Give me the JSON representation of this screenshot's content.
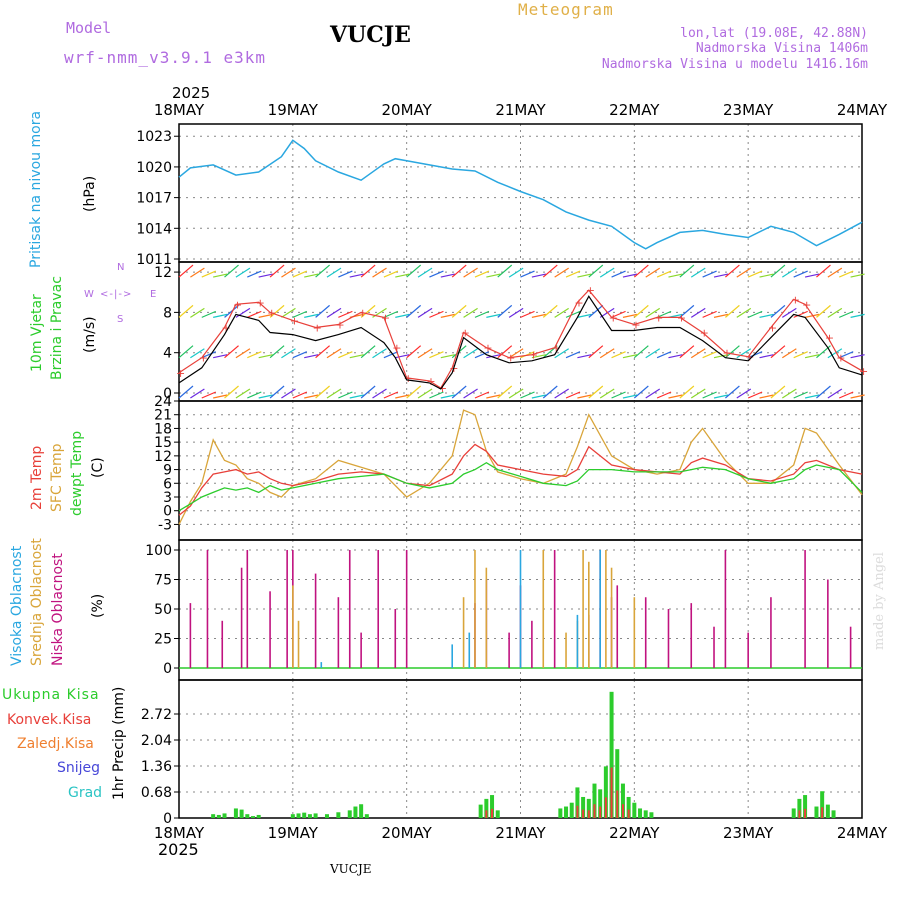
{
  "header": {
    "model_label": "Model",
    "model_name": "wrf-nmm_v3.9.1  e3km",
    "title": "VUCJE",
    "meteogram_label": "Meteogram",
    "coords": "lon,lat (19.08E, 42.88N)",
    "altitude": "Nadmorska Visina 1406m",
    "model_altitude": "Nadmorska Visina u modelu 1416.16m",
    "year_top": "2025",
    "year_bottom": "2025",
    "footer_station": "VUCJE",
    "credit": "made by Angel"
  },
  "colors": {
    "pressure": "#2aa7e0",
    "temp2m": "#e8403a",
    "sfc": "#d9a53a",
    "dewpt": "#2ccc2c",
    "high_cloud": "#2aa7e0",
    "mid_cloud": "#d9a53a",
    "low_cloud": "#c0127f",
    "total_precip": "#2ccc2c",
    "conv_precip": "#e8403a",
    "strat_precip": "#ef7f2f",
    "snow": "#4747d8",
    "hail": "#2ac4c4",
    "wind_label": "#2ccc2c",
    "compass": "#b06be0"
  },
  "chart_data": [
    {
      "type": "line",
      "panel": "pressure",
      "ylabel_1": "Pritisak na nivou mora",
      "ylabel_2": "(hPa)",
      "x_tick_labels": [
        "18MAY",
        "19MAY",
        "20MAY",
        "21MAY",
        "22MAY",
        "23MAY",
        "24MAY"
      ],
      "ylim": [
        1011,
        1024
      ],
      "y_ticks": [
        1011,
        1014,
        1017,
        1020,
        1023
      ],
      "x": [
        0,
        0.1,
        0.3,
        0.5,
        0.7,
        0.9,
        1.0,
        1.1,
        1.2,
        1.4,
        1.6,
        1.8,
        1.9,
        2.0,
        2.2,
        2.4,
        2.6,
        2.8,
        3.0,
        3.2,
        3.4,
        3.6,
        3.8,
        4.0,
        4.1,
        4.2,
        4.4,
        4.6,
        4.8,
        5.0,
        5.2,
        5.4,
        5.6,
        5.8,
        6.0
      ],
      "values": [
        1019.0,
        1019.9,
        1020.2,
        1019.2,
        1019.5,
        1021.0,
        1022.6,
        1021.8,
        1020.6,
        1019.5,
        1018.7,
        1020.3,
        1020.8,
        1020.6,
        1020.2,
        1019.8,
        1019.6,
        1018.5,
        1017.6,
        1016.8,
        1015.6,
        1014.8,
        1014.2,
        1012.6,
        1012.0,
        1012.6,
        1013.6,
        1013.8,
        1013.4,
        1013.1,
        1014.2,
        1013.6,
        1012.3,
        1013.4,
        1014.6
      ],
      "series": [
        {
          "name": "Sea level pressure"
        }
      ]
    },
    {
      "type": "line",
      "panel": "wind",
      "ylabel_1": "10m Vjetar",
      "ylabel_2": "Brzina i Pravac",
      "ylabel_3": "(m/s)",
      "compass": {
        "n": "N",
        "s": "S",
        "w": "W",
        "e": "E",
        "rose": "<-|->"
      },
      "ylim": [
        0,
        13
      ],
      "y_ticks": [
        0,
        4,
        8,
        12
      ],
      "x": [
        0,
        0.2,
        0.4,
        0.5,
        0.7,
        0.8,
        1.0,
        1.2,
        1.4,
        1.6,
        1.8,
        1.9,
        2.0,
        2.2,
        2.3,
        2.4,
        2.5,
        2.7,
        2.9,
        3.1,
        3.3,
        3.5,
        3.6,
        3.8,
        4.0,
        4.2,
        4.4,
        4.6,
        4.8,
        5.0,
        5.2,
        5.4,
        5.5,
        5.7,
        5.8,
        6.0
      ],
      "series": [
        {
          "name": "Wind gust",
          "values": [
            2.0,
            3.5,
            6.5,
            8.8,
            9.0,
            8.0,
            7.2,
            6.5,
            6.8,
            8.0,
            7.5,
            4.5,
            1.5,
            1.2,
            0.5,
            2.5,
            6.0,
            4.5,
            3.5,
            3.8,
            4.5,
            9.0,
            10.2,
            7.5,
            6.8,
            7.5,
            7.5,
            6.0,
            4.0,
            3.6,
            6.5,
            9.3,
            8.8,
            5.5,
            3.5,
            2.2
          ]
        },
        {
          "name": "Wind speed",
          "values": [
            1.0,
            2.5,
            5.8,
            7.8,
            7.2,
            6.0,
            5.8,
            5.2,
            5.8,
            6.5,
            5.0,
            3.5,
            1.3,
            1.0,
            0.4,
            2.0,
            5.5,
            3.8,
            3.0,
            3.2,
            3.8,
            7.5,
            9.6,
            6.2,
            6.2,
            6.5,
            6.5,
            5.2,
            3.5,
            3.2,
            5.5,
            7.8,
            7.5,
            4.5,
            2.5,
            1.8
          ]
        }
      ]
    },
    {
      "type": "line",
      "panel": "temperature",
      "ylabel_1": "2m Temp",
      "ylabel_2": "SFC Temp",
      "ylabel_3": "dewpt Temp",
      "ylabel_4": "(C)",
      "ylim": [
        -4,
        24
      ],
      "y_ticks": [
        -3,
        0,
        3,
        6,
        9,
        12,
        15,
        18,
        21,
        24
      ],
      "x": [
        0,
        0.1,
        0.2,
        0.3,
        0.4,
        0.5,
        0.6,
        0.7,
        0.8,
        0.9,
        1.0,
        1.2,
        1.4,
        1.6,
        1.8,
        2.0,
        2.2,
        2.4,
        2.5,
        2.6,
        2.7,
        2.8,
        3.0,
        3.2,
        3.4,
        3.5,
        3.6,
        3.8,
        4.0,
        4.2,
        4.4,
        4.5,
        4.6,
        4.8,
        5.0,
        5.2,
        5.4,
        5.5,
        5.6,
        5.8,
        6.0
      ],
      "series": [
        {
          "name": "2m Temp",
          "values": [
            -1,
            1,
            5,
            8,
            8.5,
            9,
            8,
            8.5,
            7,
            6,
            5.5,
            6.5,
            8,
            8.5,
            8,
            6,
            5.5,
            8,
            12,
            14.5,
            13,
            10,
            9,
            8,
            7.5,
            9,
            14,
            10,
            9,
            8.5,
            8,
            10.5,
            11.5,
            10,
            7,
            6.5,
            8,
            10.5,
            11,
            9,
            8
          ]
        },
        {
          "name": "SFC Temp",
          "values": [
            -3,
            2,
            6,
            15.5,
            11,
            10,
            7,
            6,
            4,
            3,
            5.5,
            7,
            11,
            9.5,
            8,
            3,
            6,
            12,
            22,
            21,
            13,
            8.5,
            7,
            6,
            8,
            14,
            21,
            12,
            9,
            8,
            9,
            15,
            18,
            11,
            6,
            6,
            10,
            18,
            17,
            10,
            3.5
          ]
        },
        {
          "name": "Dewpt Temp",
          "values": [
            0,
            1.5,
            3,
            4,
            5,
            4.5,
            5,
            4,
            5.5,
            4.5,
            5,
            6,
            7,
            7.5,
            8,
            6,
            5,
            6,
            8,
            9,
            10.5,
            9,
            7.5,
            6,
            5.5,
            6.5,
            9,
            9,
            8.5,
            8.5,
            8.5,
            9,
            9.5,
            9,
            7,
            6,
            7,
            9,
            10,
            9,
            4
          ]
        }
      ]
    },
    {
      "type": "bar",
      "panel": "cloud",
      "ylabel_1": "Visoka Oblacnost",
      "ylabel_2": "Srednja Oblacnost",
      "ylabel_3": "Niska Oblacnost",
      "ylabel_4": "(%)",
      "ylim": [
        0,
        100
      ],
      "y_ticks": [
        0,
        25,
        50,
        75,
        100
      ],
      "series": [
        {
          "name": "Niska Oblacnost",
          "x": [
            0.1,
            0.25,
            0.38,
            0.55,
            0.6,
            0.8,
            0.95,
            1.0,
            1.2,
            1.4,
            1.5,
            1.6,
            1.75,
            1.9,
            2.0,
            2.6,
            2.7,
            2.9,
            3.0,
            3.1,
            3.3,
            3.6,
            3.7,
            3.8,
            3.85,
            4.1,
            4.3,
            4.5,
            4.7,
            4.8,
            5.0,
            5.2,
            5.5,
            5.7,
            5.9
          ],
          "values": [
            55,
            100,
            40,
            85,
            100,
            65,
            100,
            100,
            80,
            60,
            100,
            30,
            100,
            50,
            100,
            55,
            75,
            30,
            70,
            40,
            100,
            45,
            100,
            60,
            70,
            60,
            50,
            55,
            35,
            100,
            30,
            60,
            100,
            75,
            35
          ]
        },
        {
          "name": "Srednja Oblacnost",
          "x": [
            1.0,
            1.05,
            2.5,
            2.6,
            2.7,
            3.2,
            3.4,
            3.5,
            3.55,
            3.6,
            3.75,
            3.8,
            4.0
          ],
          "values": [
            70,
            40,
            60,
            100,
            85,
            100,
            30,
            40,
            100,
            90,
            100,
            85,
            60
          ]
        },
        {
          "name": "Visoka Oblacnost",
          "x": [
            1.25,
            2.4,
            2.55,
            3.0,
            3.5,
            3.7
          ],
          "values": [
            5,
            20,
            30,
            100,
            45,
            100
          ]
        }
      ]
    },
    {
      "type": "bar",
      "panel": "precip",
      "ylabel_1": "1hr Precip (mm)",
      "legend": [
        "Ukupna Kisa",
        "Konvek.Kisa",
        "Zaledj.Kisa",
        "Snijeg",
        "Grad"
      ],
      "ylim": [
        0,
        3.4
      ],
      "y_ticks": [
        0,
        0.68,
        1.36,
        2.04,
        2.72
      ],
      "x": [
        0.3,
        0.35,
        0.4,
        0.5,
        0.55,
        0.6,
        0.65,
        0.7,
        1.0,
        1.05,
        1.1,
        1.15,
        1.2,
        1.3,
        1.4,
        1.5,
        1.55,
        1.6,
        1.65,
        2.65,
        2.7,
        2.75,
        2.8,
        3.35,
        3.4,
        3.45,
        3.5,
        3.55,
        3.6,
        3.65,
        3.7,
        3.75,
        3.8,
        3.85,
        3.9,
        3.95,
        4.0,
        4.05,
        4.1,
        4.15,
        5.4,
        5.45,
        5.5,
        5.6,
        5.65,
        5.7,
        5.75
      ],
      "values": [
        0.1,
        0.08,
        0.12,
        0.25,
        0.22,
        0.1,
        0.05,
        0.08,
        0.1,
        0.12,
        0.14,
        0.1,
        0.12,
        0.1,
        0.15,
        0.2,
        0.3,
        0.36,
        0.1,
        0.35,
        0.5,
        0.6,
        0.2,
        0.25,
        0.3,
        0.4,
        0.8,
        0.55,
        0.5,
        0.9,
        0.75,
        1.35,
        3.3,
        1.8,
        0.9,
        0.55,
        0.4,
        0.25,
        0.2,
        0.15,
        0.25,
        0.5,
        0.6,
        0.3,
        0.7,
        0.35,
        0.2
      ]
    }
  ]
}
